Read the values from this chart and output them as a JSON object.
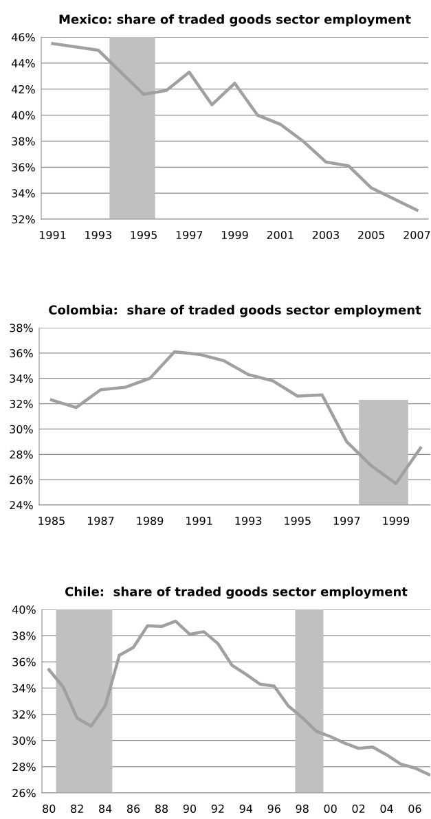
{
  "chart_data": [
    {
      "type": "line",
      "title": "Mexico: share of traded goods sector employment",
      "x": [
        1991,
        1993,
        1995,
        1996,
        1997,
        1998,
        1999,
        2000,
        2001,
        2002,
        2003,
        2004,
        2005,
        2007
      ],
      "series": [
        {
          "color": "#a0a0a2",
          "values": [
            45.5,
            45.0,
            41.6,
            41.9,
            43.3,
            40.8,
            42.45,
            40.0,
            39.3,
            38.0,
            36.4,
            36.1,
            34.4,
            32.7
          ]
        }
      ],
      "xlim": [
        1990.5,
        2007.5
      ],
      "xticks": [
        1991,
        1993,
        1995,
        1997,
        1999,
        2001,
        2003,
        2005,
        2007
      ],
      "ylim": [
        32,
        46
      ],
      "yticks": [
        {
          "value": 32,
          "label": "32%"
        },
        {
          "value": 34,
          "label": "34%"
        },
        {
          "value": 36,
          "label": "36%"
        },
        {
          "value": 38,
          "label": "38%"
        },
        {
          "value": 40,
          "label": "40%"
        },
        {
          "value": 42,
          "label": "42%"
        },
        {
          "value": 44,
          "label": "44%"
        },
        {
          "value": 46,
          "label": "46%"
        }
      ],
      "bands": [
        {
          "axis": "x",
          "from": 1993.5,
          "to": 1995.5,
          "color": "#bfc0c2"
        }
      ],
      "grid": "y",
      "legend": false,
      "marker": "none",
      "line_style": "solid"
    },
    {
      "type": "line",
      "title": "Colombia:  share of traded goods sector employment",
      "x": [
        1985,
        1986,
        1987,
        1988,
        1989,
        1990,
        1991,
        1992,
        1993,
        1994,
        1995,
        1996,
        1997,
        1998,
        1999,
        2000
      ],
      "series": [
        {
          "type": "bar",
          "color": "#bfc0c2",
          "x": [
            1998.5
          ],
          "values": [
            32.3
          ]
        },
        {
          "color": "#a0a0a2",
          "values": [
            32.3,
            31.7,
            33.1,
            33.3,
            34.0,
            36.1,
            35.9,
            35.4,
            34.3,
            33.8,
            32.6,
            32.7,
            29.0,
            27.1,
            25.7,
            28.5
          ]
        }
      ],
      "xlim": [
        1984.5,
        2000.4
      ],
      "xticks": [
        1985,
        1987,
        1989,
        1991,
        1993,
        1995,
        1997,
        1999
      ],
      "ylim": [
        24,
        38
      ],
      "yticks": [
        {
          "value": 24,
          "label": "24%"
        },
        {
          "value": 26,
          "label": "26%"
        },
        {
          "value": 28,
          "label": "28%"
        },
        {
          "value": 30,
          "label": "30%"
        },
        {
          "value": 32,
          "label": "32%"
        },
        {
          "value": 34,
          "label": "34%"
        },
        {
          "value": 36,
          "label": "36%"
        },
        {
          "value": 38,
          "label": "38%"
        }
      ],
      "grid": "y",
      "legend": false,
      "marker": "none",
      "line_style": "solid"
    },
    {
      "type": "line",
      "title": "Chile:  share of traded goods sector employment",
      "x": [
        1980,
        1981,
        1982,
        1983,
        1984,
        1985,
        1986,
        1987,
        1988,
        1989,
        1990,
        1991,
        1992,
        1993,
        1994,
        1995,
        1996,
        1997,
        1998,
        1999,
        2000,
        2001,
        2002,
        2003,
        2004,
        2005,
        2006,
        2007
      ],
      "series": [
        {
          "color": "#a0a0a2",
          "values": [
            35.4,
            34.1,
            31.7,
            31.1,
            32.65,
            36.5,
            37.1,
            38.75,
            38.7,
            39.1,
            38.1,
            38.3,
            37.4,
            35.75,
            35.05,
            34.3,
            34.15,
            32.65,
            31.75,
            30.7,
            30.3,
            29.8,
            29.4,
            29.5,
            28.9,
            28.2,
            27.9,
            27.4
          ]
        }
      ],
      "xlim": [
        1979.5,
        2007.1
      ],
      "xticks": [
        {
          "value": 1980,
          "label": "80"
        },
        {
          "value": 1982,
          "label": "82"
        },
        {
          "value": 1984,
          "label": "84"
        },
        {
          "value": 1986,
          "label": "86"
        },
        {
          "value": 1988,
          "label": "88"
        },
        {
          "value": 1990,
          "label": "90"
        },
        {
          "value": 1992,
          "label": "92"
        },
        {
          "value": 1994,
          "label": "94"
        },
        {
          "value": 1996,
          "label": "96"
        },
        {
          "value": 1998,
          "label": "98"
        },
        {
          "value": 2000,
          "label": "00"
        },
        {
          "value": 2002,
          "label": "02"
        },
        {
          "value": 2004,
          "label": "04"
        },
        {
          "value": 2006,
          "label": "06"
        }
      ],
      "ylim": [
        26,
        40
      ],
      "yticks": [
        {
          "value": 26,
          "label": "26%"
        },
        {
          "value": 28,
          "label": "28%"
        },
        {
          "value": 30,
          "label": "30%"
        },
        {
          "value": 32,
          "label": "32%"
        },
        {
          "value": 34,
          "label": "34%"
        },
        {
          "value": 36,
          "label": "36%"
        },
        {
          "value": 38,
          "label": "38%"
        },
        {
          "value": 40,
          "label": "40%"
        }
      ],
      "bands": [
        {
          "axis": "x",
          "from": 1980.5,
          "to": 1984.5,
          "color": "#bfc0c2"
        },
        {
          "axis": "x",
          "from": 1997.5,
          "to": 1999.5,
          "color": "#bfc0c2"
        }
      ],
      "grid": "y",
      "legend": false,
      "marker": "none",
      "line_style": "solid"
    }
  ]
}
